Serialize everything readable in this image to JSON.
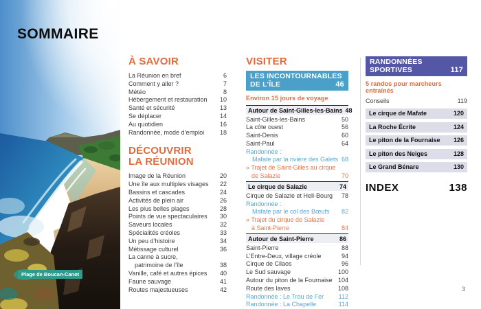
{
  "page": {
    "title": "SOMMAIRE",
    "folio": "3",
    "photo_caption": "Plage de Boucan-Canot",
    "photo_alt": "beach-cove-photo"
  },
  "colors": {
    "orange": "#e26b3d",
    "blue_box": "#4aa0c8",
    "purple_box": "#5457a6",
    "blue_text": "#57a8d3",
    "bar_bg": "#dcdde8",
    "caption_teal": "#2f9c8b"
  },
  "savoir": {
    "heading": "À SAVOIR",
    "items": [
      {
        "t": "La Réunion en bref",
        "p": "6"
      },
      {
        "t": "Comment y aller ?",
        "p": "7"
      },
      {
        "t": "Météo",
        "p": "8"
      },
      {
        "t": "Hébergement et restauration",
        "p": "10"
      },
      {
        "t": "Santé et sécurité",
        "p": "13"
      },
      {
        "t": "Se déplacer",
        "p": "14"
      },
      {
        "t": "Au quotidien",
        "p": "16"
      },
      {
        "t": "Randonnée, mode d’emploi",
        "p": "18"
      }
    ]
  },
  "decouvrir": {
    "heading": "DÉCOUVRIR\nLA RÉUNION",
    "items": [
      {
        "t": "Image de la Réunion",
        "p": "20"
      },
      {
        "t": "Une île aux multiples visages",
        "p": "22"
      },
      {
        "t": "Bassins et cascades",
        "p": "24"
      },
      {
        "t": "Activités de plein air",
        "p": "26"
      },
      {
        "t": "Les plus belles plages",
        "p": "28"
      },
      {
        "t": "Points de vue spectaculaires",
        "p": "30"
      },
      {
        "t": "Saveurs locales",
        "p": "32"
      },
      {
        "t": "Spécialités créoles",
        "p": "33"
      },
      {
        "t": "Un peu d’histoire",
        "p": "34"
      },
      {
        "t": "Métissage culturel",
        "p": "36"
      },
      {
        "t": "La canne à sucre,"
      },
      {
        "t": "patrimoine de l’île",
        "p": "38",
        "s": "indent"
      },
      {
        "t": "Vanille, café et autres épices",
        "p": "40"
      },
      {
        "t": "Faune sauvage",
        "p": "41"
      },
      {
        "t": "Routes majestueuses",
        "p": "42"
      }
    ]
  },
  "visiter": {
    "heading": "VISITER",
    "box_label": "LES INCONTOURNABLES DE L’ÎLE",
    "box_page": "46",
    "subheading": "Environ 15 jours de voyage",
    "items": [
      {
        "t": "Autour de Saint-Gilles-les-Bains",
        "p": "48",
        "s": "rule"
      },
      {
        "t": "Saint-Gilles-les-Bains",
        "p": "50"
      },
      {
        "t": "La côte ouest",
        "p": "56"
      },
      {
        "t": "Saint-Denis",
        "p": "60"
      },
      {
        "t": "Saint-Paul",
        "p": "64"
      },
      {
        "t": "Randonnée :",
        "s": "blue"
      },
      {
        "t": "Mafate par la rivière des Galets",
        "p": "68",
        "s": "blueind"
      },
      {
        "t": "» Trajet de Saint-Gilles au cirque",
        "s": "orange"
      },
      {
        "t": "de Salazie",
        "p": "70",
        "s": "orangeind"
      },
      {
        "t": "Le cirque de Salazie",
        "p": "74",
        "s": "rule"
      },
      {
        "t": "Cirque de Salazie et Hell-Bourg",
        "p": "78"
      },
      {
        "t": "Randonnée :",
        "s": "blue"
      },
      {
        "t": "Mafate par le col des Bœufs",
        "p": "82",
        "s": "blueind"
      },
      {
        "t": "» Trajet du cirque de Salazie",
        "s": "orange"
      },
      {
        "t": "à Saint-Pierre",
        "p": "84",
        "s": "orangeind"
      },
      {
        "t": "Autour de Saint-Pierre",
        "p": "86",
        "s": "rule"
      },
      {
        "t": "Saint-Pierre",
        "p": "88"
      },
      {
        "t": "L’Entre-Deux, village créole",
        "p": "94"
      },
      {
        "t": "Cirque de Cilaos",
        "p": "96"
      },
      {
        "t": "Le Sud sauvage",
        "p": "100"
      },
      {
        "t": "Autour du piton de la Fournaise",
        "p": "104"
      },
      {
        "t": "Route des laves",
        "p": "108"
      },
      {
        "t": "Randonnée : Le Trou de Fer",
        "p": "112",
        "s": "blue"
      },
      {
        "t": "Randonnée : La Chapelle",
        "p": "114",
        "s": "blue"
      }
    ]
  },
  "randonnees": {
    "box_label": "RANDONNÉES SPORTIVES",
    "box_page": "117",
    "subheading": "5 randos pour marcheurs entraînés",
    "items": [
      {
        "t": "Conseils",
        "p": "119"
      },
      {
        "t": "Le cirque de Mafate",
        "p": "120",
        "s": "bar"
      },
      {
        "t": "La Roche Écrite",
        "p": "124",
        "s": "bar"
      },
      {
        "t": "Le piton de la Fournaise",
        "p": "126",
        "s": "bar"
      },
      {
        "t": "Le piton des Neiges",
        "p": "128",
        "s": "bar"
      },
      {
        "t": "Le Grand Bénare",
        "p": "130",
        "s": "bar"
      }
    ],
    "index_label": "INDEX",
    "index_page": "138"
  }
}
